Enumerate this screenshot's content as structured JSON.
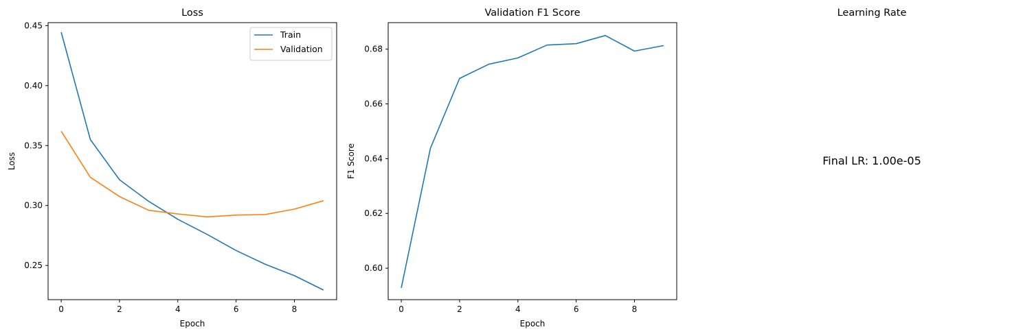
{
  "chart_data": [
    {
      "type": "line",
      "title": "Loss",
      "xlabel": "Epoch",
      "ylabel": "Loss",
      "x": [
        0,
        1,
        2,
        3,
        4,
        5,
        6,
        7,
        8,
        9
      ],
      "xlim": [
        -0.45,
        9.45
      ],
      "ylim": [
        0.2215,
        0.4525
      ],
      "xticks": [
        0,
        2,
        4,
        6,
        8
      ],
      "yticks": [
        0.25,
        0.3,
        0.35,
        0.4,
        0.45
      ],
      "xtick_labels": [
        "0",
        "2",
        "4",
        "6",
        "8"
      ],
      "ytick_labels": [
        "0.25",
        "0.30",
        "0.35",
        "0.40",
        "0.45"
      ],
      "legend": "top-right",
      "grid": false,
      "series": [
        {
          "name": "Train",
          "color": "#1f77b4",
          "values": [
            0.4445,
            0.355,
            0.3215,
            0.3035,
            0.2885,
            0.276,
            0.2625,
            0.251,
            0.2415,
            0.2295
          ]
        },
        {
          "name": "Validation",
          "color": "#ff7f0e",
          "values": [
            0.362,
            0.3235,
            0.3075,
            0.296,
            0.293,
            0.2905,
            0.292,
            0.2925,
            0.297,
            0.304
          ]
        }
      ]
    },
    {
      "type": "line",
      "title": "Validation F1 Score",
      "xlabel": "Epoch",
      "ylabel": "F1 Score",
      "x": [
        0,
        1,
        2,
        3,
        4,
        5,
        6,
        7,
        8,
        9
      ],
      "xlim": [
        -0.45,
        9.45
      ],
      "ylim": [
        0.5885,
        0.6897
      ],
      "xticks": [
        0,
        2,
        4,
        6,
        8
      ],
      "yticks": [
        0.6,
        0.62,
        0.64,
        0.66,
        0.68
      ],
      "xtick_labels": [
        "0",
        "2",
        "4",
        "6",
        "8"
      ],
      "ytick_labels": [
        "0.60",
        "0.62",
        "0.64",
        "0.66",
        "0.68"
      ],
      "grid": false,
      "series": [
        {
          "color": "#1f77b4",
          "values": [
            0.5928,
            0.6438,
            0.6693,
            0.6745,
            0.6768,
            0.6815,
            0.682,
            0.685,
            0.6793,
            0.6813
          ]
        }
      ]
    },
    {
      "type": "text",
      "title": "Learning Rate",
      "annotation": "Final LR: 1.00e-05"
    }
  ]
}
